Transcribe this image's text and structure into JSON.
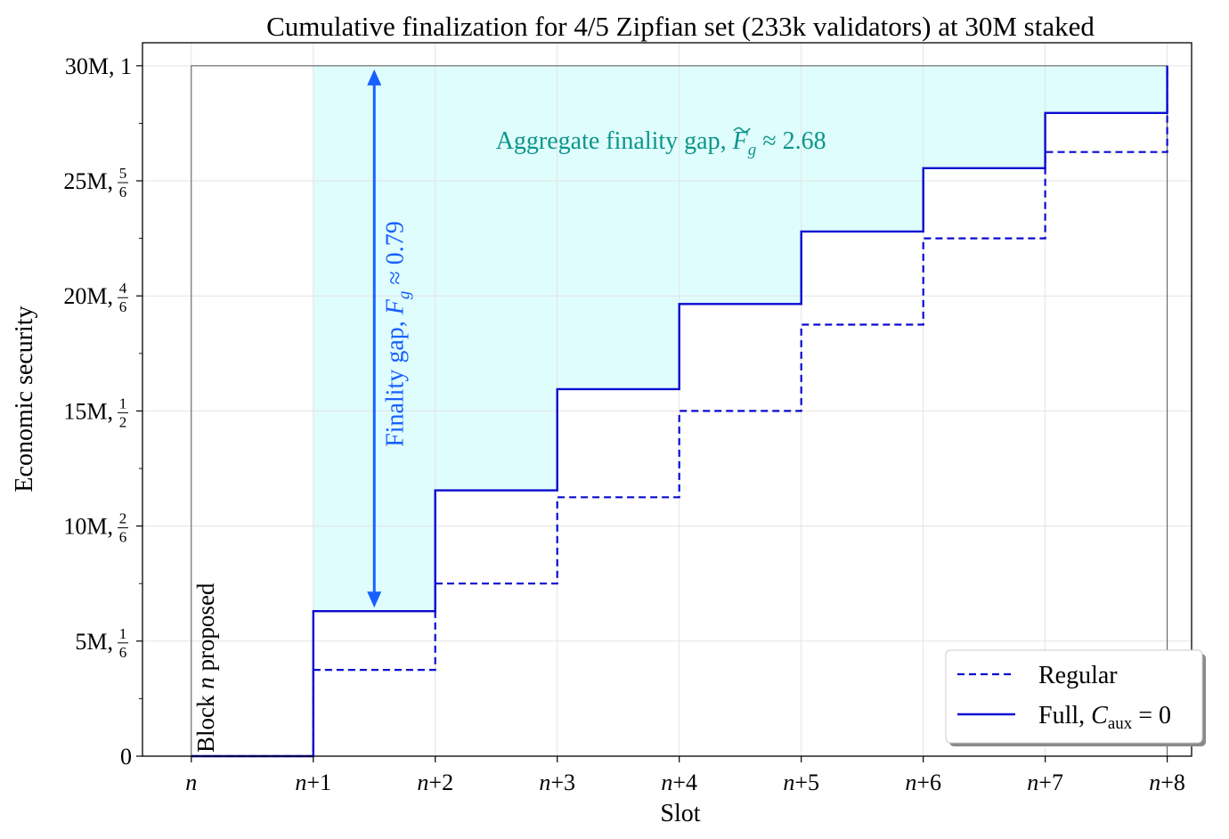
{
  "chart_data": {
    "type": "line",
    "title": "Cumulative finalization for 4/5 Zipfian set (233k validators) at 30M staked",
    "xlabel": "Slot",
    "ylabel": "Economic security",
    "xlim": [
      -0.4,
      8.2
    ],
    "ylim": [
      0,
      31
    ],
    "step": "post",
    "x": [
      0,
      1,
      2,
      3,
      4,
      5,
      6,
      7,
      8
    ],
    "x_tick_labels": [
      {
        "italic": "n",
        "rest": ""
      },
      {
        "italic": "n",
        "rest": "+1"
      },
      {
        "italic": "n",
        "rest": "+2"
      },
      {
        "italic": "n",
        "rest": "+3"
      },
      {
        "italic": "n",
        "rest": "+4"
      },
      {
        "italic": "n",
        "rest": "+5"
      },
      {
        "italic": "n",
        "rest": "+6"
      },
      {
        "italic": "n",
        "rest": "+7"
      },
      {
        "italic": "n",
        "rest": "+8"
      }
    ],
    "y_ticks": [
      {
        "value": 0,
        "label": "0",
        "num": "",
        "den": ""
      },
      {
        "value": 5,
        "label": "5M, ",
        "num": "1",
        "den": "6"
      },
      {
        "value": 10,
        "label": "10M, ",
        "num": "2",
        "den": "6"
      },
      {
        "value": 15,
        "label": "15M, ",
        "num": "1",
        "den": "2"
      },
      {
        "value": 20,
        "label": "20M, ",
        "num": "4",
        "den": "6"
      },
      {
        "value": 25,
        "label": "25M, ",
        "num": "5",
        "den": "6"
      },
      {
        "value": 30,
        "label": "30M, 1",
        "num": "",
        "den": ""
      }
    ],
    "grid": true,
    "legend_position": "bottom-right",
    "series": [
      {
        "name": "Regular",
        "style": "dashed",
        "color": "#0a0ad2",
        "values": [
          0,
          3.75,
          7.5,
          11.25,
          15.0,
          18.75,
          22.5,
          26.25,
          30.0
        ]
      },
      {
        "name": "Full, ",
        "name_math": {
          "base": "C",
          "sub": "aux",
          "tail": " = 0"
        },
        "style": "solid",
        "color": "#0a0ad2",
        "values": [
          0,
          6.3,
          11.55,
          15.95,
          19.65,
          22.8,
          25.55,
          27.95,
          30.0
        ]
      }
    ],
    "reference_box": {
      "x0": 0,
      "x1": 8,
      "y0": 0,
      "y1": 30,
      "color": "#555555"
    },
    "shaded_region": {
      "color": "#e0fdfd",
      "from_x": 1,
      "to_x": 8,
      "upper": 30
    },
    "annotations": {
      "aggregate_gap": {
        "text": "Aggregate finality gap,  ",
        "symbol": "F",
        "sub": "g",
        "tail": " ≈ 2.68",
        "x": 3.85,
        "y": 26.4
      },
      "finality_gap": {
        "text": "Finality gap,  ",
        "symbol": "F",
        "sub": "g",
        "tail": " ≈ 0.79",
        "x": 1.5,
        "y_from": 6.3,
        "y_to": 30
      },
      "block_proposed": {
        "pre": "Block ",
        "italic": "n",
        "post": " proposed",
        "x": 0.2,
        "y": 0.5
      }
    }
  }
}
